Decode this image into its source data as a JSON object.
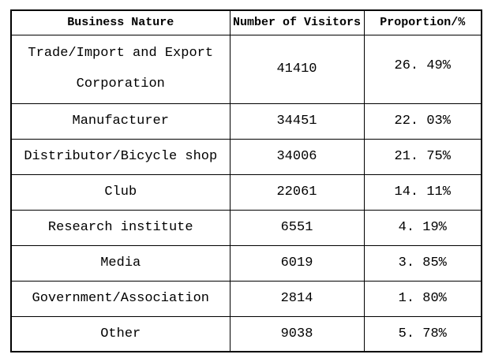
{
  "table": {
    "headers": {
      "business": "Business Nature",
      "visitors": "Number of Visitors",
      "proportion": "Proportion/%"
    },
    "rows": [
      {
        "business_lines": [
          "Trade/Import and Export",
          "Corporation"
        ],
        "visitors": "41410",
        "proportion": "26. 49%"
      },
      {
        "business": "Manufacturer",
        "visitors": "34451",
        "proportion": "22. 03%"
      },
      {
        "business": "Distributor/Bicycle shop",
        "visitors": "34006",
        "proportion": "21. 75%"
      },
      {
        "business": "Club",
        "visitors": "22061",
        "proportion": "14. 11%"
      },
      {
        "business": "Research institute",
        "visitors": "6551",
        "proportion": "4. 19%"
      },
      {
        "business": "Media",
        "visitors": "6019",
        "proportion": "3. 85%"
      },
      {
        "business": "Government/Association",
        "visitors": "2814",
        "proportion": "1. 80%"
      },
      {
        "business": "Other",
        "visitors": "9038",
        "proportion": "5. 78%"
      }
    ]
  },
  "colors": {
    "border": "#000000",
    "text": "#000000",
    "background": "#ffffff"
  },
  "chart_data": {
    "type": "table",
    "title": "",
    "columns": [
      "Business Nature",
      "Number of Visitors",
      "Proportion/%"
    ],
    "rows": [
      [
        "Trade/Import and Export Corporation",
        41410,
        "26.49%"
      ],
      [
        "Manufacturer",
        34451,
        "22.03%"
      ],
      [
        "Distributor/Bicycle shop",
        34006,
        "21.75%"
      ],
      [
        "Club",
        22061,
        "14.11%"
      ],
      [
        "Research institute",
        6551,
        "4.19%"
      ],
      [
        "Media",
        6019,
        "3.85%"
      ],
      [
        "Government/Association",
        2814,
        "1.80%"
      ],
      [
        "Other",
        9038,
        "5.78%"
      ]
    ]
  }
}
